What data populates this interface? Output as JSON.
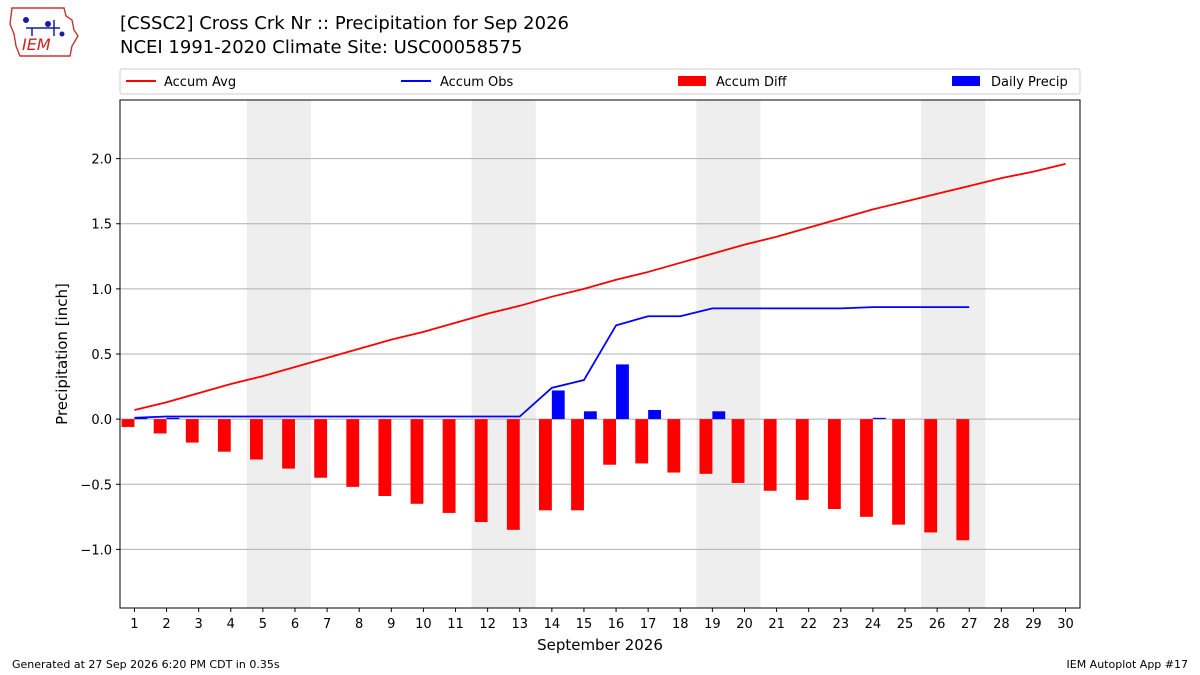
{
  "header": {
    "title_line1": "[CSSC2] Cross Crk Nr :: Precipitation for Sep 2026",
    "title_line2": "NCEI 1991-2020 Climate Site: USC00058575"
  },
  "logo": {
    "text": "IEM",
    "icon": "iem-logo-icon"
  },
  "footer": {
    "generated": "Generated at 27 Sep 2026 6:20 PM CDT in 0.35s",
    "app": "IEM Autoplot App #17"
  },
  "colors": {
    "accum_avg": "#ff0000",
    "accum_obs": "#0000ff",
    "accum_diff": "#ff0000",
    "daily_precip": "#0000ff",
    "weekend_shade": "#eeeeee",
    "grid": "#b0b0b0"
  },
  "chart_data": {
    "type": "bar",
    "xlabel": "September 2026",
    "ylabel": "Precipitation [inch]",
    "ylim": [
      -1.45,
      2.45
    ],
    "yticks": [
      -1.0,
      -0.5,
      0.0,
      0.5,
      1.0,
      1.5,
      2.0
    ],
    "ytick_labels": [
      "−1.0",
      "−0.5",
      "0.0",
      "0.5",
      "1.0",
      "1.5",
      "2.0"
    ],
    "x": [
      1,
      2,
      3,
      4,
      5,
      6,
      7,
      8,
      9,
      10,
      11,
      12,
      13,
      14,
      15,
      16,
      17,
      18,
      19,
      20,
      21,
      22,
      23,
      24,
      25,
      26,
      27,
      28,
      29,
      30
    ],
    "grid": "horizontal",
    "legend_placement": "top",
    "weekend_shading": [
      [
        5,
        6
      ],
      [
        12,
        13
      ],
      [
        19,
        20
      ],
      [
        26,
        27
      ]
    ],
    "series": [
      {
        "name": "Accum Avg",
        "type": "line",
        "x": [
          1,
          2,
          3,
          4,
          5,
          6,
          7,
          8,
          9,
          10,
          11,
          12,
          13,
          14,
          15,
          16,
          17,
          18,
          19,
          20,
          21,
          22,
          23,
          24,
          25,
          26,
          27,
          28,
          29,
          30
        ],
        "values": [
          0.07,
          0.13,
          0.2,
          0.27,
          0.33,
          0.4,
          0.47,
          0.54,
          0.61,
          0.67,
          0.74,
          0.81,
          0.87,
          0.94,
          1.0,
          1.07,
          1.13,
          1.2,
          1.27,
          1.34,
          1.4,
          1.47,
          1.54,
          1.61,
          1.67,
          1.73,
          1.79,
          1.85,
          1.9,
          1.96
        ]
      },
      {
        "name": "Accum Obs",
        "type": "line",
        "x": [
          1,
          2,
          3,
          4,
          5,
          6,
          7,
          8,
          9,
          10,
          11,
          12,
          13,
          14,
          15,
          16,
          17,
          18,
          19,
          20,
          21,
          22,
          23,
          24,
          25,
          26,
          27
        ],
        "values": [
          0.01,
          0.02,
          0.02,
          0.02,
          0.02,
          0.02,
          0.02,
          0.02,
          0.02,
          0.02,
          0.02,
          0.02,
          0.02,
          0.24,
          0.3,
          0.72,
          0.79,
          0.79,
          0.85,
          0.85,
          0.85,
          0.85,
          0.85,
          0.86,
          0.86,
          0.86,
          0.86
        ]
      },
      {
        "name": "Accum Diff",
        "type": "bar",
        "x": [
          1,
          2,
          3,
          4,
          5,
          6,
          7,
          8,
          9,
          10,
          11,
          12,
          13,
          14,
          15,
          16,
          17,
          18,
          19,
          20,
          21,
          22,
          23,
          24,
          25,
          26,
          27
        ],
        "values": [
          -0.06,
          -0.11,
          -0.18,
          -0.25,
          -0.31,
          -0.38,
          -0.45,
          -0.52,
          -0.59,
          -0.65,
          -0.72,
          -0.79,
          -0.85,
          -0.7,
          -0.7,
          -0.35,
          -0.34,
          -0.41,
          -0.42,
          -0.49,
          -0.55,
          -0.62,
          -0.69,
          -0.75,
          -0.81,
          -0.87,
          -0.93
        ]
      },
      {
        "name": "Daily Precip",
        "type": "bar",
        "x": [
          1,
          2,
          3,
          4,
          5,
          6,
          7,
          8,
          9,
          10,
          11,
          12,
          13,
          14,
          15,
          16,
          17,
          18,
          19,
          20,
          21,
          22,
          23,
          24,
          25,
          26,
          27
        ],
        "values": [
          0.01,
          0.01,
          0,
          0,
          0,
          0,
          0,
          0,
          0,
          0,
          0,
          0,
          0,
          0.22,
          0.06,
          0.42,
          0.07,
          0,
          0.06,
          0,
          0,
          0,
          0,
          0.01,
          0,
          0,
          0
        ]
      }
    ]
  }
}
